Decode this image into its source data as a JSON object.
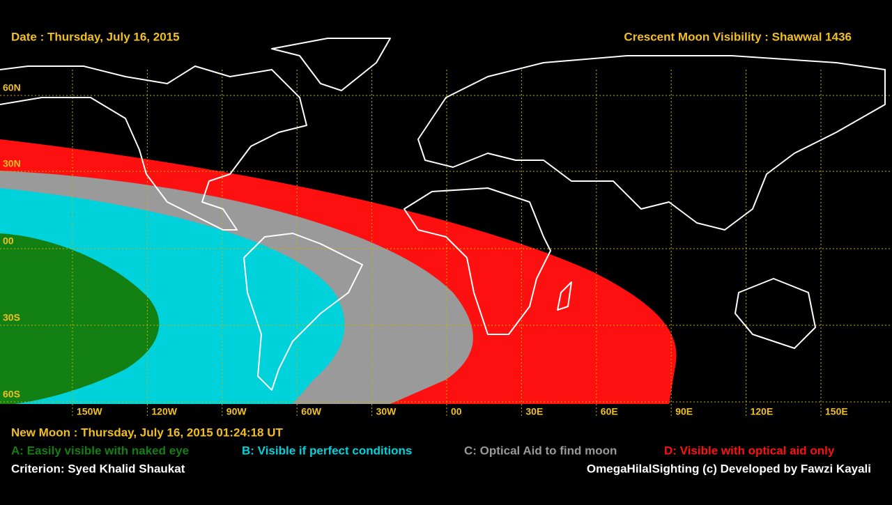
{
  "header": {
    "date": "Date : Thursday, July 16, 2015",
    "title": "Crescent Moon Visibility : Shawwal  1436"
  },
  "map": {
    "lat_labels": [
      "60N",
      "30N",
      "00",
      "30S",
      "60S"
    ],
    "lon_labels": [
      "150W",
      "120W",
      "90W",
      "60W",
      "30W",
      "00",
      "30E",
      "60E",
      "90E",
      "120E",
      "150E"
    ]
  },
  "footer": {
    "new_moon": "New Moon : Thursday, July 16, 2015  01:24:18  UT",
    "legend": [
      {
        "text": "A: Easily visible with naked eye",
        "color": "#128012"
      },
      {
        "text": "B: Visible if perfect conditions",
        "color": "#00d2dc"
      },
      {
        "text": "C: Optical Aid to find moon",
        "color": "#9a9a9a"
      },
      {
        "text": "D: Visible with optical aid only",
        "color": "#ff1010"
      }
    ],
    "criterion": "Criterion: Syed Khalid Shaukat",
    "credit": "OmegaHilalSighting  (c)  Developed by Fawzi Kayali"
  }
}
